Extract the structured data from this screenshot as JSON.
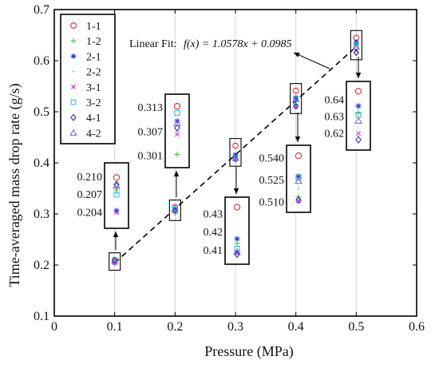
{
  "chart_data": {
    "type": "scatter",
    "xlabel": "Pressure (MPa)",
    "ylabel": "Time-averaged mass drop rate (g/s)",
    "xlim": [
      0,
      0.6
    ],
    "ylim": [
      0.1,
      0.7
    ],
    "xticks": [
      0,
      0.1,
      0.2,
      0.3,
      0.4,
      0.5,
      0.6
    ],
    "yticks": [
      0.1,
      0.2,
      0.3,
      0.4,
      0.5,
      0.6,
      0.7
    ],
    "xtick_labels": [
      "0",
      "0.1",
      "0.2",
      "0.3",
      "0.4",
      "0.5",
      "0.6"
    ],
    "ytick_labels": [
      "0.1",
      "0.2",
      "0.3",
      "0.4",
      "0.5",
      "0.6",
      "0.7"
    ],
    "grid": "vertical",
    "legend_position": "top-left",
    "x": [
      0.1,
      0.2,
      0.3,
      0.4,
      0.5
    ],
    "series": [
      {
        "name": "1-1",
        "marker": "circle",
        "color": "#e8141a",
        "values": [
          0.2098,
          0.3132,
          0.4335,
          0.5412,
          0.6449
        ]
      },
      {
        "name": "1-2",
        "marker": "plus",
        "color": "#2bbf2b",
        "values": [
          0.2077,
          0.3012,
          0.4135,
          0.5132,
          0.6319
        ]
      },
      {
        "name": "2-1",
        "marker": "asterisk",
        "color": "#1c2fe8",
        "values": [
          0.2042,
          0.3095,
          0.416,
          0.5272,
          0.6361
        ]
      },
      {
        "name": "2-2",
        "marker": "dot",
        "color": "#19c9c9",
        "values": [
          0.2071,
          0.307,
          0.409,
          0.5187,
          0.6345
        ]
      },
      {
        "name": "3-1",
        "marker": "cross",
        "color": "#d41fd4",
        "values": [
          0.2039,
          0.3062,
          0.4082,
          0.5105,
          0.6196
        ]
      },
      {
        "name": "3-2",
        "marker": "square",
        "color": "#2aaee0",
        "values": [
          0.2069,
          0.3115,
          0.4105,
          0.5264,
          0.6308
        ]
      },
      {
        "name": "4-1",
        "marker": "diamond",
        "color": "#2020b0",
        "values": [
          0.2086,
          0.3078,
          0.4075,
          0.511,
          0.6159
        ]
      },
      {
        "name": "4-2",
        "marker": "triangle",
        "color": "#6b5fd0",
        "values": [
          0.2084,
          0.3089,
          0.4087,
          0.524,
          0.6272
        ]
      }
    ],
    "fit": {
      "type": "linear",
      "slope": 1.0578,
      "intercept": 0.0985,
      "x_range": [
        0.1,
        0.5
      ],
      "label": "Linear Fit:",
      "equation": "f(x) = 1.0578x + 0.0985"
    },
    "insets": [
      {
        "group_x": 0.1,
        "tick_labels": [
          "0.210",
          "0.207",
          "0.204"
        ],
        "tick_values": [
          0.21,
          0.207,
          0.204
        ],
        "range": [
          0.2023,
          0.2112
        ]
      },
      {
        "group_x": 0.2,
        "tick_labels": [
          "0.313",
          "0.307",
          "0.301"
        ],
        "tick_values": [
          0.313,
          0.307,
          0.301
        ],
        "range": [
          0.2995,
          0.3146
        ]
      },
      {
        "group_x": 0.3,
        "tick_labels": [
          "0.43",
          "0.42",
          "0.41"
        ],
        "tick_values": [
          0.43,
          0.42,
          0.41
        ],
        "range": [
          0.4055,
          0.4355
        ]
      },
      {
        "group_x": 0.4,
        "tick_labels": [
          "0.540",
          "0.525",
          "0.510"
        ],
        "tick_values": [
          0.54,
          0.525,
          0.51
        ],
        "range": [
          0.507,
          0.544
        ]
      },
      {
        "group_x": 0.5,
        "tick_labels": [
          "0.64",
          "0.63",
          "0.62"
        ],
        "tick_values": [
          0.64,
          0.63,
          0.62
        ],
        "range": [
          0.6135,
          0.647
        ]
      }
    ]
  }
}
